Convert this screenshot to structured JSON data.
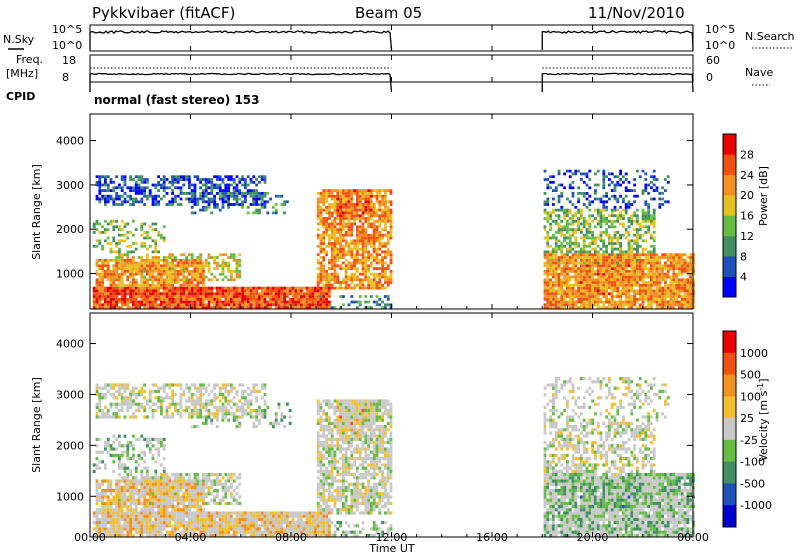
{
  "header": {
    "radar": "Pykkvibaer (fitACF)",
    "beam": "Beam 05",
    "date": "11/Nov/2010"
  },
  "panels": {
    "nsky": {
      "left_label": "N.Sky",
      "right_label": "N.Search",
      "left_ticks": [
        "10^5",
        "10^0"
      ],
      "right_ticks": [
        "10^5",
        "10^0"
      ]
    },
    "freq": {
      "left_label_1": "Freq.",
      "left_label_2": "[MHz]",
      "right_label": "Nave",
      "left_ticks": [
        "18",
        "8"
      ],
      "right_ticks": [
        "60",
        "0"
      ]
    },
    "cpid": {
      "label": "CPID",
      "text": "normal (fast stereo) 153"
    }
  },
  "colors": {
    "power": [
      "#0000ff",
      "#1f4fb8",
      "#3f8f5f",
      "#66bb44",
      "#e6c020",
      "#f09020",
      "#f05010",
      "#e60000"
    ],
    "velocity": [
      "#e60000",
      "#f05010",
      "#f09020",
      "#f0c030",
      "#c8c8c8",
      "#66bb44",
      "#3f8f5f",
      "#1f4fb8",
      "#0000cc"
    ]
  },
  "chart_data": [
    {
      "type": "line",
      "name": "N.Sky / N.Search",
      "x": [
        "00:00",
        "12:00",
        "18:00",
        "24:00"
      ],
      "segments": [
        [
          0.0,
          12.0
        ],
        [
          18.0,
          24.0
        ]
      ]
    },
    {
      "type": "line",
      "name": "Freq / Nave",
      "segments": [
        [
          0.0,
          12.0
        ],
        [
          18.0,
          24.0
        ]
      ]
    },
    {
      "type": "heatmap",
      "name": "Power",
      "ylabel": "Slant Range [km]",
      "ylim": [
        200,
        4600
      ],
      "yticks": [
        "1000",
        "2000",
        "3000",
        "4000"
      ],
      "xlim": [
        0,
        24
      ],
      "colorbar": {
        "label": "Power [dB]",
        "ticks": [
          "4",
          "8",
          "12",
          "16",
          "20",
          "24",
          "28"
        ]
      },
      "gap_hours": [
        12.0,
        18.0
      ]
    },
    {
      "type": "heatmap",
      "name": "Velocity",
      "xlabel": "Time UT",
      "xticks": [
        "00:00",
        "04:00",
        "08:00",
        "12:00",
        "16:00",
        "20:00",
        "00:00"
      ],
      "ylabel": "Slant Range [km]",
      "ylim": [
        200,
        4600
      ],
      "yticks": [
        "1000",
        "2000",
        "3000",
        "4000"
      ],
      "xlim": [
        0,
        24
      ],
      "colorbar": {
        "label": "Velocity [m s",
        "label_sup": "-1",
        "label_end": "]",
        "ticks": [
          "1000",
          "500",
          "100",
          "25",
          "-25",
          "-100",
          "-500",
          "-1000"
        ]
      },
      "gap_hours": [
        12.0,
        18.0
      ]
    }
  ]
}
